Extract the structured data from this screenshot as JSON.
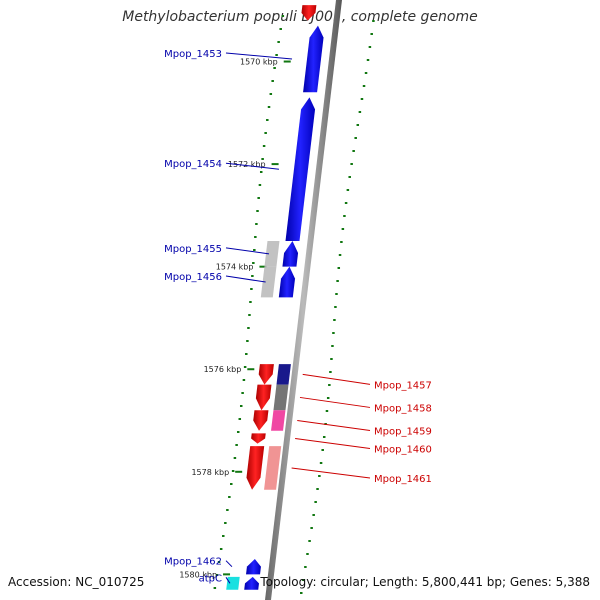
{
  "title": "Methylobacterium populi BJ001, complete genome",
  "footer": {
    "accession": "Accession: NC_010725",
    "summary": "Topology: circular; Length: 5,800,441 bp; Genes: 5,388"
  },
  "ticks": [
    {
      "label": "1570 kbp",
      "kbp": 1570
    },
    {
      "label": "1572 kbp",
      "kbp": 1572
    },
    {
      "label": "1574 kbp",
      "kbp": 1574
    },
    {
      "label": "1576 kbp",
      "kbp": 1576
    },
    {
      "label": "1578 kbp",
      "kbp": 1578
    },
    {
      "label": "1580 kbp",
      "kbp": 1580
    }
  ],
  "genes": [
    {
      "name": "Mpop_1453",
      "strand": "+",
      "start_kbp": 1569.3,
      "end_kbp": 1570.6,
      "color": "#0000ee",
      "side": "left"
    },
    {
      "name": "Mpop_1454",
      "strand": "+",
      "start_kbp": 1570.7,
      "end_kbp": 1573.5,
      "color": "#0000ee",
      "side": "left"
    },
    {
      "name": "Mpop_1455",
      "strand": "+",
      "start_kbp": 1573.5,
      "end_kbp": 1574.0,
      "color": "#0000ee",
      "side": "left"
    },
    {
      "name": "Mpop_1456",
      "strand": "+",
      "start_kbp": 1574.0,
      "end_kbp": 1574.6,
      "color": "#0000ee",
      "side": "left"
    },
    {
      "name": "Mpop_1457",
      "strand": "-",
      "start_kbp": 1575.9,
      "end_kbp": 1576.3,
      "color": "#ee0000",
      "side": "right"
    },
    {
      "name": "Mpop_1458",
      "strand": "-",
      "start_kbp": 1576.3,
      "end_kbp": 1576.8,
      "color": "#ee0000",
      "side": "right"
    },
    {
      "name": "Mpop_1459",
      "strand": "-",
      "start_kbp": 1576.8,
      "end_kbp": 1577.2,
      "color": "#ee0000",
      "side": "right"
    },
    {
      "name": "Mpop_1460",
      "strand": "-",
      "start_kbp": 1577.25,
      "end_kbp": 1577.45,
      "color": "#ee0000",
      "side": "right"
    },
    {
      "name": "Mpop_1461",
      "strand": "-",
      "start_kbp": 1577.5,
      "end_kbp": 1578.35,
      "color": "#ee0000",
      "side": "right"
    },
    {
      "name": "Mpop_1462",
      "strand": "+",
      "start_kbp": 1579.7,
      "end_kbp": 1580.0,
      "color": "#0000ee",
      "side": "left"
    },
    {
      "name": "atpC",
      "strand": "+",
      "start_kbp": 1580.05,
      "end_kbp": 1580.3,
      "color": "#0000ee",
      "side": "left"
    },
    {
      "name": "",
      "strand": "-",
      "start_kbp": 1568.9,
      "end_kbp": 1569.2,
      "color": "#ee0000",
      "side": "right"
    }
  ],
  "features": [
    {
      "ref": "Mpop_1455",
      "kind": "cds",
      "color": "#bbbbbb"
    },
    {
      "ref": "Mpop_1456",
      "kind": "cds",
      "color": "#bbbbbb"
    },
    {
      "ref": "Mpop_1457",
      "kind": "cds",
      "color": "#000080"
    },
    {
      "ref": "Mpop_1458",
      "kind": "cds",
      "color": "#666666"
    },
    {
      "ref": "Mpop_1459",
      "kind": "cds",
      "color": "#ee3399"
    },
    {
      "ref": "Mpop_1461",
      "kind": "cds",
      "color": "#ee8888"
    },
    {
      "ref": "atpC",
      "kind": "cds",
      "color": "#00dddd"
    }
  ],
  "colors": {
    "forward": "#0000ee",
    "reverse": "#ee0000",
    "backbone": "#888888",
    "gc_skew_dots": "#117711",
    "label_forward": "#0000aa",
    "label_reverse": "#cc0000"
  }
}
